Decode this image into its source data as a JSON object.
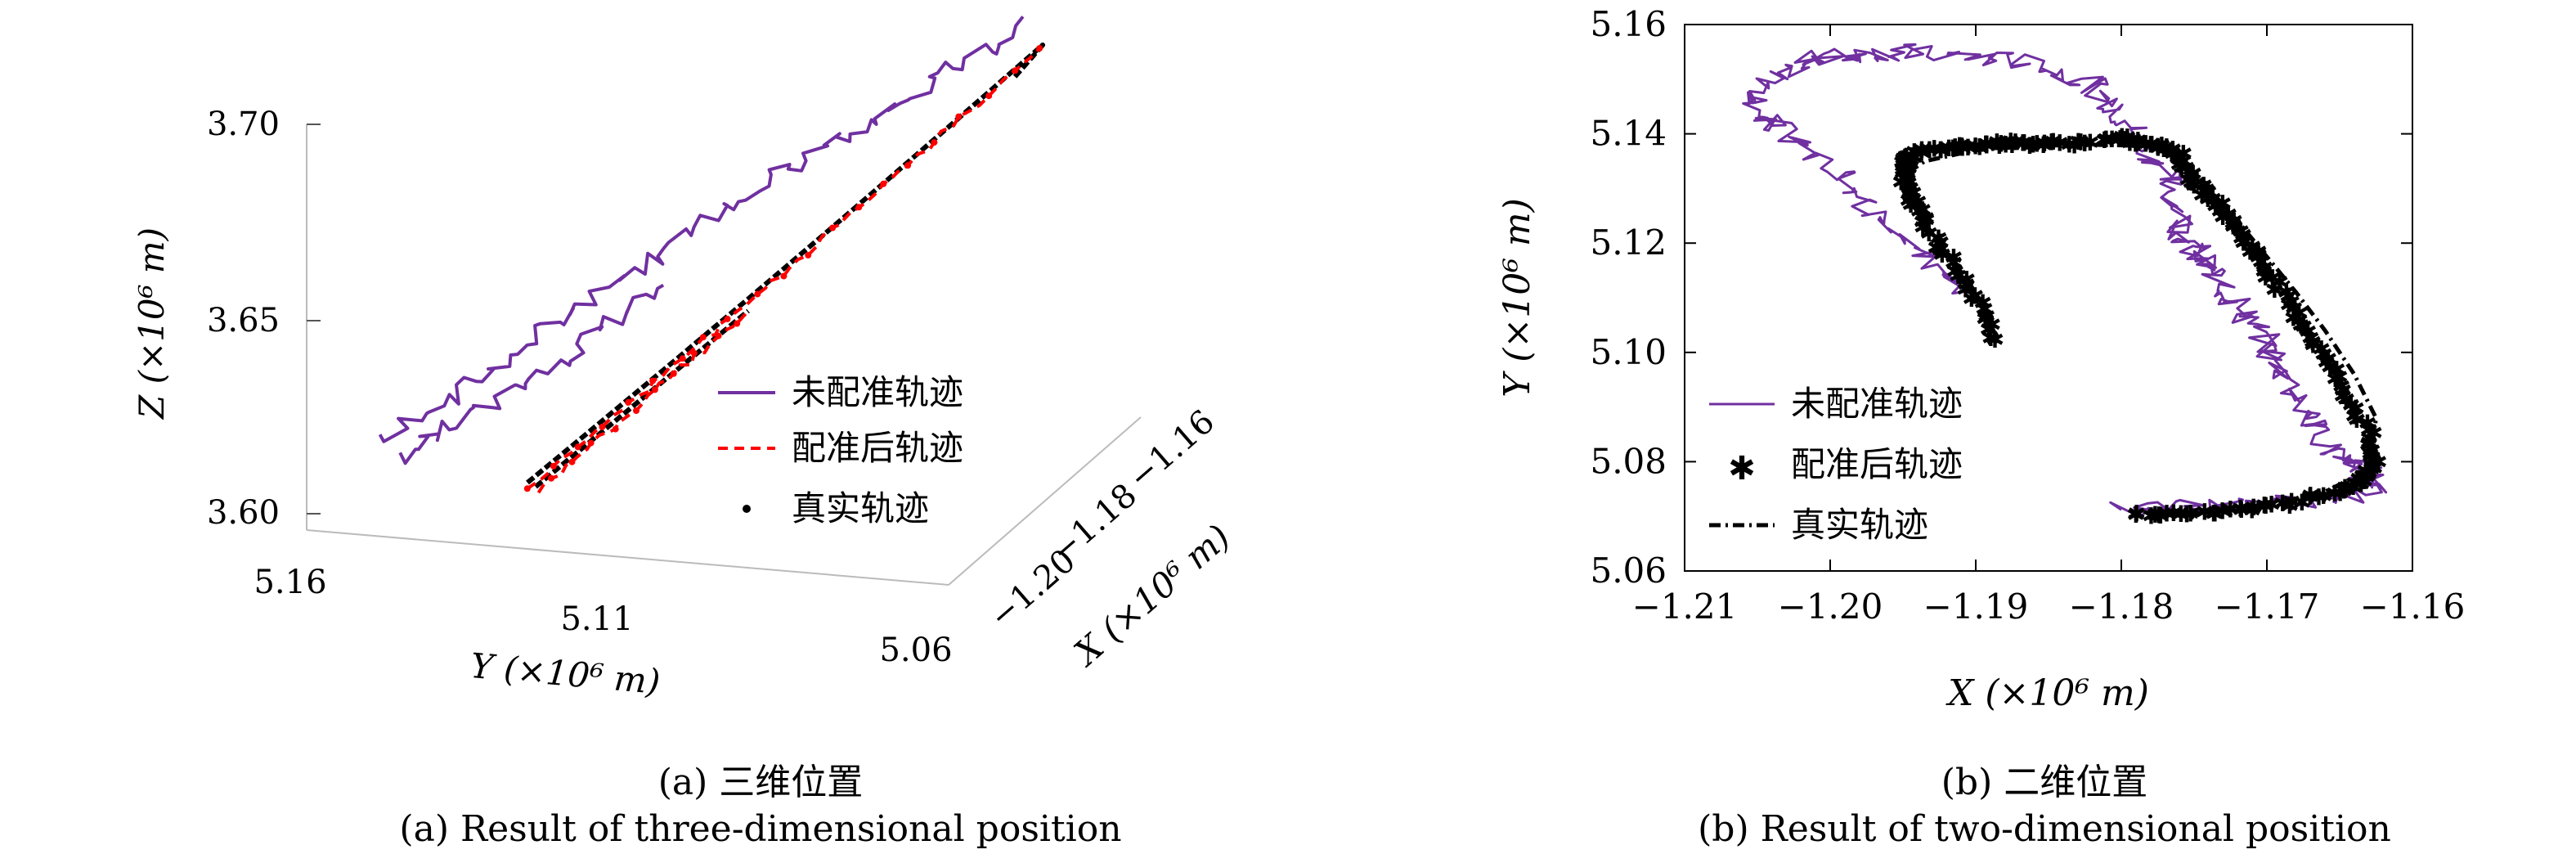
{
  "colors": {
    "unregistered": "#7030a0",
    "registered": "#ff0000",
    "truth": "#000000"
  },
  "captions": {
    "a_cn": "(a) 三维位置",
    "a_en": "(a) Result of three-dimensional position",
    "b_cn": "(b) 二维位置",
    "b_en": "(b) Result of two-dimensional position"
  },
  "chart_data": [
    {
      "type": "line",
      "subtype": "3d",
      "legend_position": "right",
      "axes": {
        "z": {
          "label": "Z (×10⁶ m)",
          "ticks": [
            "3.60",
            "3.65",
            "3.70"
          ],
          "tick_values": [
            3.6,
            3.65,
            3.7
          ]
        },
        "y": {
          "label": "Y (×10⁶ m)",
          "ticks": [
            "5.16",
            "5.11",
            "5.06"
          ],
          "tick_values": [
            5.16,
            5.11,
            5.06
          ]
        },
        "x": {
          "label": "X (×10⁶ m)",
          "ticks": [
            "−1.20",
            "−1.18",
            "−1.16"
          ],
          "tick_values": [
            -1.2,
            -1.18,
            -1.16
          ]
        }
      },
      "legend": [
        {
          "label": "未配准轨迹",
          "style": "solid",
          "color": "#7030a0"
        },
        {
          "label": "配准后轨迹",
          "style": "dashed",
          "color": "#ff0000"
        },
        {
          "label": "真实轨迹",
          "style": "dot",
          "color": "#000000"
        }
      ]
    },
    {
      "type": "line",
      "xlabel": "X (×10⁶ m)",
      "ylabel": "Y (×10⁶ m)",
      "xlim": [
        -1.21,
        -1.16
      ],
      "ylim": [
        5.06,
        5.16
      ],
      "xticks": [
        "−1.21",
        "−1.20",
        "−1.19",
        "−1.18",
        "−1.17",
        "−1.16"
      ],
      "xtick_values": [
        -1.21,
        -1.2,
        -1.19,
        -1.18,
        -1.17,
        -1.16
      ],
      "yticks": [
        "5.06",
        "5.08",
        "5.10",
        "5.12",
        "5.14",
        "5.16"
      ],
      "ytick_values": [
        5.06,
        5.08,
        5.1,
        5.12,
        5.14,
        5.16
      ],
      "grid": false,
      "legend_position": "bottom-left",
      "series": [
        {
          "name": "真实轨迹",
          "style": "dashdot",
          "color": "#000000",
          "x": [
            -1.1886,
            -1.1895,
            -1.1908,
            -1.1925,
            -1.194,
            -1.1948,
            -1.1946,
            -1.1935,
            -1.19,
            -1.186,
            -1.182,
            -1.178,
            -1.176,
            -1.174,
            -1.172,
            -1.17,
            -1.168,
            -1.166,
            -1.164,
            -1.1625,
            -1.163,
            -1.166,
            -1.17,
            -1.175
          ],
          "y": [
            5.103,
            5.108,
            5.114,
            5.12,
            5.1255,
            5.13,
            5.133,
            5.135,
            5.137,
            5.1378,
            5.138,
            5.1378,
            5.136,
            5.13,
            5.124,
            5.1175,
            5.111,
            5.104,
            5.096,
            5.088,
            5.0785,
            5.0745,
            5.072,
            5.0705
          ]
        },
        {
          "name": "配准后轨迹",
          "style": "star",
          "color": "#ff0000",
          "x": [
            -1.1885,
            -1.19,
            -1.1918,
            -1.1935,
            -1.1945,
            -1.195,
            -1.1948,
            -1.1945,
            -1.1925,
            -1.19,
            -1.188,
            -1.186,
            -1.183,
            -1.18,
            -1.178,
            -1.1762,
            -1.1757,
            -1.1745,
            -1.173,
            -1.1718,
            -1.1705,
            -1.169,
            -1.1675,
            -1.166,
            -1.1645,
            -1.163,
            -1.1627,
            -1.1632,
            -1.165,
            -1.1685,
            -1.172,
            -1.176,
            -1.179
          ],
          "y": [
            5.102,
            5.1095,
            5.117,
            5.1235,
            5.1285,
            5.132,
            5.1348,
            5.136,
            5.1372,
            5.1378,
            5.1382,
            5.138,
            5.1382,
            5.139,
            5.1378,
            5.137,
            5.134,
            5.1295,
            5.126,
            5.1215,
            5.117,
            5.111,
            5.105,
            5.099,
            5.092,
            5.085,
            5.0795,
            5.077,
            5.0745,
            5.0722,
            5.071,
            5.0705,
            5.0702
          ]
        },
        {
          "name": "未配准轨迹",
          "style": "solid",
          "color": "#7030a0",
          "x": [
            -1.1905,
            -1.194,
            -1.1975,
            -1.2,
            -1.2035,
            -1.205,
            -1.204,
            -1.201,
            -1.198,
            -1.195,
            -1.19,
            -1.186,
            -1.182,
            -1.18,
            -1.1785,
            -1.177,
            -1.176,
            -1.1755,
            -1.1745,
            -1.173,
            -1.1715,
            -1.17,
            -1.1685,
            -1.167,
            -1.1655,
            -1.164,
            -1.1625,
            -1.1628,
            -1.166,
            -1.171,
            -1.176,
            -1.18
          ],
          "y": [
            5.111,
            5.119,
            5.127,
            5.134,
            5.142,
            5.145,
            5.15,
            5.154,
            5.1545,
            5.155,
            5.154,
            5.153,
            5.149,
            5.144,
            5.138,
            5.133,
            5.126,
            5.12,
            5.117,
            5.112,
            5.107,
            5.101,
            5.095,
            5.088,
            5.082,
            5.079,
            5.0775,
            5.075,
            5.073,
            5.072,
            5.0715,
            5.0712
          ]
        }
      ]
    }
  ]
}
